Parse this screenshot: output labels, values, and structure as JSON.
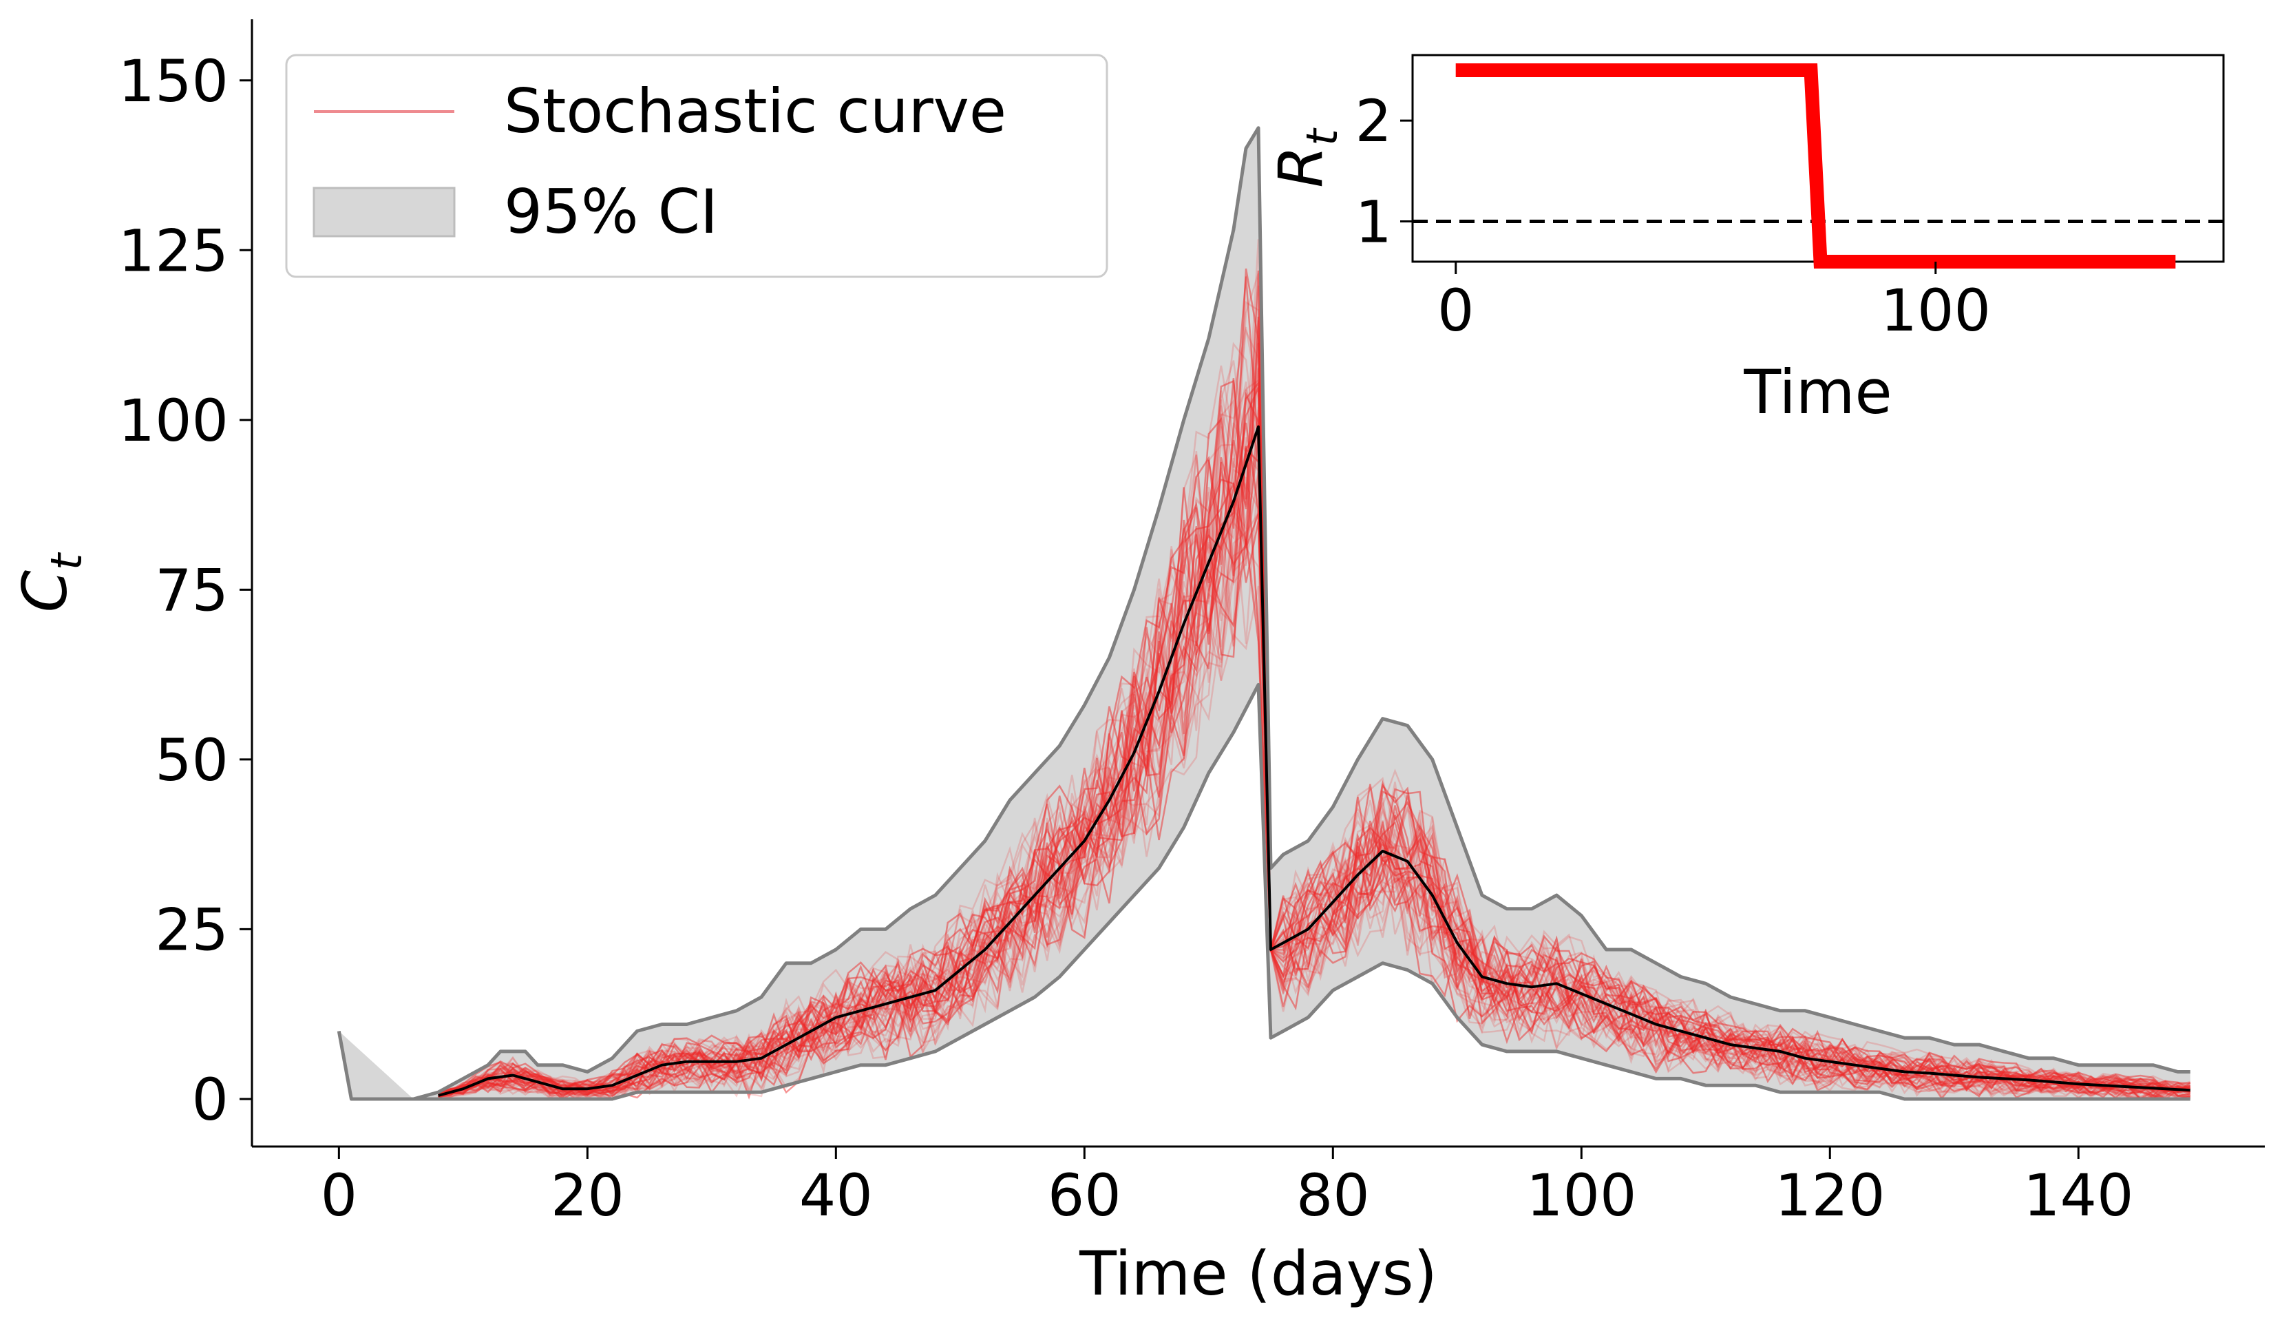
{
  "chart_data": [
    {
      "type": "line",
      "xlabel": "Time (days)",
      "ylabel_base": "C",
      "ylabel_sub": "t",
      "xlim": [
        -7,
        155
      ],
      "ylim": [
        -7,
        159
      ],
      "xticks": [
        0,
        20,
        40,
        60,
        80,
        100,
        120,
        140
      ],
      "yticks": [
        0,
        25,
        50,
        75,
        100,
        125,
        150
      ],
      "xtick_labels": [
        "0",
        "20",
        "40",
        "60",
        "80",
        "100",
        "120",
        "140"
      ],
      "ytick_labels": [
        "0",
        "25",
        "50",
        "75",
        "100",
        "125",
        "150"
      ],
      "legend": {
        "placement": "top-left",
        "entries": [
          {
            "label": "Stochastic curve",
            "kind": "line",
            "color": "#ee8a8f"
          },
          {
            "label": "95% CI",
            "kind": "patch",
            "color": "#d9d9d9"
          }
        ]
      },
      "colors": {
        "stochastic": "#ee2a2a",
        "ci_fill": "#d7d7d7",
        "ci_edge": "#808080",
        "mean": "#000000"
      },
      "series": {
        "upper": [
          [
            0,
            10
          ],
          [
            1,
            0
          ],
          [
            6,
            0
          ],
          [
            8,
            1
          ],
          [
            10,
            3
          ],
          [
            12,
            5
          ],
          [
            13,
            7
          ],
          [
            15,
            7
          ],
          [
            16,
            5
          ],
          [
            18,
            5
          ],
          [
            20,
            4
          ],
          [
            22,
            6
          ],
          [
            24,
            10
          ],
          [
            26,
            11
          ],
          [
            28,
            11
          ],
          [
            30,
            12
          ],
          [
            32,
            13
          ],
          [
            34,
            15
          ],
          [
            36,
            20
          ],
          [
            38,
            20
          ],
          [
            40,
            22
          ],
          [
            42,
            25
          ],
          [
            44,
            25
          ],
          [
            46,
            28
          ],
          [
            48,
            30
          ],
          [
            50,
            34
          ],
          [
            52,
            38
          ],
          [
            54,
            44
          ],
          [
            56,
            48
          ],
          [
            58,
            52
          ],
          [
            60,
            58
          ],
          [
            62,
            65
          ],
          [
            64,
            75
          ],
          [
            66,
            87
          ],
          [
            68,
            100
          ],
          [
            70,
            112
          ],
          [
            72,
            128
          ],
          [
            73,
            140
          ],
          [
            74,
            143
          ],
          [
            75,
            34
          ],
          [
            76,
            36
          ],
          [
            78,
            38
          ],
          [
            80,
            43
          ],
          [
            82,
            50
          ],
          [
            84,
            56
          ],
          [
            86,
            55
          ],
          [
            88,
            50
          ],
          [
            90,
            40
          ],
          [
            92,
            30
          ],
          [
            94,
            28
          ],
          [
            96,
            28
          ],
          [
            98,
            30
          ],
          [
            100,
            27
          ],
          [
            102,
            22
          ],
          [
            104,
            22
          ],
          [
            106,
            20
          ],
          [
            108,
            18
          ],
          [
            110,
            17
          ],
          [
            112,
            15
          ],
          [
            114,
            14
          ],
          [
            116,
            13
          ],
          [
            118,
            13
          ],
          [
            120,
            12
          ],
          [
            122,
            11
          ],
          [
            124,
            10
          ],
          [
            126,
            9
          ],
          [
            128,
            9
          ],
          [
            130,
            8
          ],
          [
            132,
            8
          ],
          [
            134,
            7
          ],
          [
            136,
            6
          ],
          [
            138,
            6
          ],
          [
            140,
            5
          ],
          [
            142,
            5
          ],
          [
            144,
            5
          ],
          [
            146,
            5
          ],
          [
            148,
            4
          ],
          [
            149,
            4
          ]
        ],
        "lower": [
          [
            6,
            0
          ],
          [
            20,
            0
          ],
          [
            22,
            0
          ],
          [
            24,
            1
          ],
          [
            26,
            1
          ],
          [
            28,
            1
          ],
          [
            30,
            1
          ],
          [
            32,
            1
          ],
          [
            34,
            1
          ],
          [
            36,
            2
          ],
          [
            38,
            3
          ],
          [
            40,
            4
          ],
          [
            42,
            5
          ],
          [
            44,
            5
          ],
          [
            46,
            6
          ],
          [
            48,
            7
          ],
          [
            50,
            9
          ],
          [
            52,
            11
          ],
          [
            54,
            13
          ],
          [
            56,
            15
          ],
          [
            58,
            18
          ],
          [
            60,
            22
          ],
          [
            62,
            26
          ],
          [
            64,
            30
          ],
          [
            66,
            34
          ],
          [
            68,
            40
          ],
          [
            70,
            48
          ],
          [
            72,
            54
          ],
          [
            74,
            61
          ],
          [
            75,
            9
          ],
          [
            76,
            10
          ],
          [
            78,
            12
          ],
          [
            80,
            16
          ],
          [
            82,
            18
          ],
          [
            84,
            20
          ],
          [
            86,
            19
          ],
          [
            88,
            17
          ],
          [
            90,
            12
          ],
          [
            92,
            8
          ],
          [
            94,
            7
          ],
          [
            96,
            7
          ],
          [
            98,
            7
          ],
          [
            100,
            6
          ],
          [
            102,
            5
          ],
          [
            104,
            4
          ],
          [
            106,
            3
          ],
          [
            108,
            3
          ],
          [
            110,
            2
          ],
          [
            112,
            2
          ],
          [
            114,
            2
          ],
          [
            116,
            1
          ],
          [
            118,
            1
          ],
          [
            120,
            1
          ],
          [
            122,
            1
          ],
          [
            124,
            1
          ],
          [
            126,
            0
          ],
          [
            128,
            0
          ],
          [
            130,
            0
          ],
          [
            134,
            0
          ],
          [
            138,
            0
          ],
          [
            142,
            0
          ],
          [
            146,
            0
          ],
          [
            149,
            0
          ]
        ],
        "mean": [
          [
            8,
            0.5
          ],
          [
            10,
            1.5
          ],
          [
            12,
            3
          ],
          [
            14,
            3.5
          ],
          [
            16,
            2.5
          ],
          [
            18,
            1.5
          ],
          [
            20,
            1.5
          ],
          [
            22,
            2
          ],
          [
            24,
            3.5
          ],
          [
            26,
            5
          ],
          [
            28,
            5.5
          ],
          [
            30,
            5.5
          ],
          [
            32,
            5.5
          ],
          [
            34,
            6
          ],
          [
            36,
            8
          ],
          [
            38,
            10
          ],
          [
            40,
            12
          ],
          [
            42,
            13
          ],
          [
            44,
            14
          ],
          [
            46,
            15
          ],
          [
            48,
            16
          ],
          [
            50,
            19
          ],
          [
            52,
            22
          ],
          [
            54,
            26
          ],
          [
            56,
            30
          ],
          [
            58,
            34
          ],
          [
            60,
            38
          ],
          [
            62,
            44
          ],
          [
            64,
            51
          ],
          [
            66,
            60
          ],
          [
            68,
            70
          ],
          [
            70,
            79
          ],
          [
            72,
            88
          ],
          [
            74,
            99
          ],
          [
            75,
            22
          ],
          [
            76,
            23
          ],
          [
            78,
            25
          ],
          [
            80,
            29
          ],
          [
            82,
            33
          ],
          [
            84,
            36.5
          ],
          [
            86,
            35
          ],
          [
            88,
            30
          ],
          [
            90,
            23
          ],
          [
            92,
            18
          ],
          [
            94,
            17
          ],
          [
            96,
            16.5
          ],
          [
            98,
            17
          ],
          [
            100,
            15.5
          ],
          [
            102,
            14
          ],
          [
            104,
            12.5
          ],
          [
            106,
            11
          ],
          [
            108,
            10
          ],
          [
            110,
            9
          ],
          [
            112,
            8
          ],
          [
            114,
            7.5
          ],
          [
            116,
            7
          ],
          [
            118,
            6
          ],
          [
            120,
            5.5
          ],
          [
            122,
            5
          ],
          [
            124,
            4.5
          ],
          [
            126,
            4
          ],
          [
            128,
            3.8
          ],
          [
            130,
            3.5
          ],
          [
            132,
            3.2
          ],
          [
            134,
            3
          ],
          [
            136,
            2.8
          ],
          [
            138,
            2.5
          ],
          [
            140,
            2.2
          ],
          [
            142,
            2
          ],
          [
            144,
            1.8
          ],
          [
            146,
            1.6
          ],
          [
            148,
            1.4
          ],
          [
            149,
            1.3
          ]
        ]
      }
    },
    {
      "type": "line",
      "xlabel": "Time",
      "ylabel_base": "R",
      "ylabel_sub": "t",
      "xlim": [
        -9,
        160
      ],
      "ylim": [
        0.6,
        2.65
      ],
      "xticks": [
        0,
        100
      ],
      "yticks": [
        1,
        2
      ],
      "xtick_labels": [
        "0",
        "100"
      ],
      "ytick_labels": [
        "1",
        "2"
      ],
      "threshold": 1,
      "colors": {
        "rt": "#ff0000",
        "threshold": "#000000"
      },
      "series": {
        "rt": [
          [
            0,
            2.5
          ],
          [
            74,
            2.5
          ],
          [
            76,
            0.6
          ],
          [
            150,
            0.6
          ]
        ]
      }
    }
  ]
}
